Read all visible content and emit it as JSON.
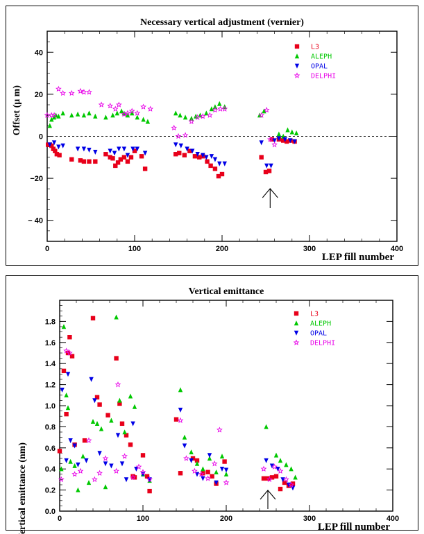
{
  "chart_data": [
    {
      "type": "scatter",
      "title": "Necessary vertical adjustment (vernier)",
      "xlabel": "LEP fill number",
      "ylabel": "Offset (μ m)",
      "xlim": [
        0,
        400
      ],
      "ylim": [
        -50,
        50
      ],
      "xticks": [
        0,
        100,
        200,
        300,
        400
      ],
      "yticks": [
        40,
        20,
        0,
        -20,
        -40
      ],
      "ytick_labels": [
        "40",
        "20",
        "0",
        "−20",
        "− 40"
      ],
      "reference_line": 0,
      "arrow_at_x": 255,
      "legend_position": "top-right",
      "series": [
        {
          "name": "L3",
          "color": "#e8001a",
          "marker": "square",
          "x": [
            1,
            3,
            5,
            7,
            9,
            11,
            14,
            28,
            38,
            42,
            48,
            55,
            67,
            72,
            75,
            78,
            81,
            84,
            88,
            92,
            96,
            100,
            108,
            112,
            147,
            151,
            157,
            163,
            169,
            174,
            178,
            183,
            187,
            192,
            196,
            200,
            245,
            250,
            254,
            257,
            265,
            270,
            274,
            278,
            283
          ],
          "y": [
            -4,
            -4,
            -4.5,
            -6,
            -7,
            -8.5,
            -9,
            -11,
            -11.5,
            -12,
            -12,
            -12,
            -8.5,
            -10,
            -10.5,
            -14,
            -12.5,
            -11,
            -10,
            -12,
            -10,
            -7,
            -9.5,
            -15.5,
            -8.5,
            -8,
            -9,
            -7,
            -9.5,
            -10,
            -9.5,
            -12,
            -14,
            -15.5,
            -19,
            -18,
            -10,
            -17,
            -16.5,
            -1.5,
            -1.5,
            -2,
            -2.5,
            -2,
            -2.5
          ]
        },
        {
          "name": "ALEPH",
          "color": "#00c800",
          "marker": "triangle-up",
          "x": [
            3,
            5,
            8,
            10,
            13,
            18,
            28,
            35,
            42,
            48,
            55,
            67,
            75,
            80,
            85,
            88,
            92,
            97,
            103,
            110,
            115,
            147,
            152,
            158,
            165,
            170,
            175,
            182,
            188,
            192,
            197,
            203,
            243,
            248,
            265,
            270,
            275,
            280,
            285
          ],
          "y": [
            5,
            8,
            9,
            10,
            9.5,
            11,
            10,
            10.5,
            10,
            11,
            9.5,
            9,
            10,
            11,
            12,
            11,
            10,
            11,
            9,
            8,
            7,
            11,
            10,
            9,
            8.5,
            9.5,
            10,
            11,
            13,
            14,
            15.5,
            14,
            10,
            12,
            1,
            0,
            3,
            2,
            1.5
          ]
        },
        {
          "name": "OPAL",
          "color": "#0000e6",
          "marker": "triangle-down",
          "x": [
            3,
            8,
            13,
            18,
            35,
            42,
            48,
            55,
            72,
            77,
            82,
            88,
            92,
            98,
            103,
            112,
            147,
            153,
            160,
            166,
            172,
            178,
            182,
            188,
            192,
            197,
            203,
            245,
            251,
            256,
            260,
            265,
            272,
            278,
            283
          ],
          "y": [
            -4,
            -3,
            -5,
            -4.5,
            -6,
            -6,
            -6.5,
            -7.5,
            -7,
            -8,
            -6,
            -6,
            -9,
            -6,
            -6,
            -8,
            -4,
            -4.5,
            -6,
            -7,
            -8.5,
            -9,
            -10,
            -9.5,
            -11,
            -13,
            -13,
            -3,
            -14,
            -14,
            -2,
            -1,
            -1.5,
            -2,
            -2.5
          ]
        },
        {
          "name": "DELPHI",
          "color": "#e800e8",
          "marker": "star",
          "x": [
            0,
            5,
            8,
            13,
            18,
            28,
            38,
            42,
            48,
            62,
            72,
            78,
            82,
            88,
            92,
            97,
            103,
            110,
            118,
            145,
            150,
            158,
            165,
            172,
            178,
            186,
            192,
            198,
            203,
            245,
            251,
            255,
            260
          ],
          "y": [
            10,
            10,
            10,
            22.5,
            20.5,
            20.5,
            21.5,
            21,
            21,
            15,
            14.5,
            13,
            15,
            10.5,
            11,
            12,
            11,
            14,
            13,
            4,
            0,
            0.5,
            7,
            9,
            9.5,
            10,
            12.5,
            13,
            13,
            10,
            12.5,
            -1.5,
            -4
          ]
        }
      ]
    },
    {
      "type": "scatter",
      "title": "Vertical emittance",
      "xlabel": "LEP fill number",
      "ylabel": "Vertical emittance (nm)",
      "xlim": [
        0,
        400
      ],
      "ylim": [
        0,
        2
      ],
      "xticks": [
        0,
        100,
        200,
        300,
        400
      ],
      "yticks": [
        0.0,
        0.2,
        0.4,
        0.6,
        0.8,
        1.0,
        1.2,
        1.4,
        1.6,
        1.8
      ],
      "ytick_labels": [
        "0.0",
        "0.2",
        "0.4",
        "0.6",
        "0.8",
        "1.0",
        "1.2",
        "1.4",
        "1.6",
        "1.8"
      ],
      "arrow_at_x": 250,
      "legend_position": "top-right",
      "series": [
        {
          "name": "L3",
          "color": "#e8001a",
          "marker": "square",
          "x": [
            0,
            5,
            8,
            10,
            12,
            15,
            18,
            30,
            40,
            45,
            48,
            58,
            68,
            72,
            75,
            80,
            85,
            88,
            90,
            100,
            105,
            108,
            140,
            145,
            160,
            165,
            172,
            178,
            183,
            188,
            198,
            245,
            250,
            255,
            260,
            265,
            270,
            275,
            280
          ],
          "y": [
            0.57,
            1.33,
            0.92,
            1.5,
            1.65,
            1.47,
            0.63,
            0.67,
            1.83,
            1.08,
            1.01,
            0.91,
            1.45,
            1.02,
            0.83,
            0.72,
            0.63,
            0.33,
            0.32,
            0.53,
            0.33,
            0.19,
            0.87,
            0.36,
            0.5,
            0.48,
            0.36,
            0.37,
            0.33,
            0.26,
            0.47,
            0.31,
            0.31,
            0.32,
            0.33,
            0.21,
            0.27,
            0.24,
            0.26
          ]
        },
        {
          "name": "ALEPH",
          "color": "#00c800",
          "marker": "triangle-up",
          "x": [
            2,
            5,
            8,
            10,
            13,
            18,
            22,
            28,
            35,
            40,
            45,
            50,
            55,
            62,
            68,
            72,
            78,
            85,
            90,
            100,
            108,
            145,
            150,
            158,
            165,
            172,
            180,
            188,
            195,
            200,
            248,
            260,
            265,
            272,
            278,
            283
          ],
          "y": [
            0.4,
            1.75,
            1.1,
            0.98,
            0.47,
            0.43,
            0.2,
            0.52,
            0.27,
            0.85,
            0.83,
            0.78,
            0.23,
            0.86,
            1.84,
            1.05,
            0.75,
            1.09,
            0.99,
            0.35,
            0.29,
            1.15,
            0.7,
            0.56,
            0.45,
            0.4,
            0.5,
            0.37,
            0.52,
            0.35,
            0.8,
            0.53,
            0.48,
            0.44,
            0.4,
            0.32
          ]
        },
        {
          "name": "OPAL",
          "color": "#0000e6",
          "marker": "triangle-down",
          "x": [
            3,
            8,
            10,
            13,
            18,
            22,
            32,
            38,
            42,
            48,
            55,
            62,
            70,
            75,
            80,
            88,
            92,
            100,
            108,
            145,
            150,
            158,
            165,
            172,
            180,
            188,
            195,
            200,
            248,
            255,
            262,
            268,
            275,
            280
          ],
          "y": [
            1.15,
            0.48,
            1.3,
            0.67,
            0.62,
            0.44,
            0.48,
            1.25,
            1.05,
            0.55,
            0.45,
            0.43,
            0.72,
            0.45,
            0.3,
            0.83,
            0.4,
            0.35,
            0.3,
            0.96,
            0.62,
            0.48,
            0.35,
            0.31,
            0.53,
            0.27,
            0.4,
            0.39,
            0.48,
            0.43,
            0.4,
            0.3,
            0.25,
            0.22
          ]
        },
        {
          "name": "DELPHI",
          "color": "#e800e8",
          "marker": "star",
          "x": [
            2,
            8,
            12,
            18,
            25,
            35,
            42,
            48,
            55,
            68,
            70,
            78,
            88,
            95,
            100,
            108,
            145,
            152,
            162,
            170,
            178,
            186,
            192,
            200,
            245,
            252,
            258,
            265,
            272,
            278
          ],
          "y": [
            0.3,
            1.52,
            1.5,
            0.35,
            0.38,
            0.67,
            0.3,
            0.36,
            0.5,
            0.38,
            1.2,
            0.52,
            0.32,
            0.42,
            0.37,
            0.3,
            0.86,
            0.5,
            0.38,
            0.35,
            0.31,
            0.45,
            0.77,
            0.27,
            0.4,
            0.3,
            0.42,
            0.38,
            0.3,
            0.25
          ]
        }
      ]
    }
  ]
}
